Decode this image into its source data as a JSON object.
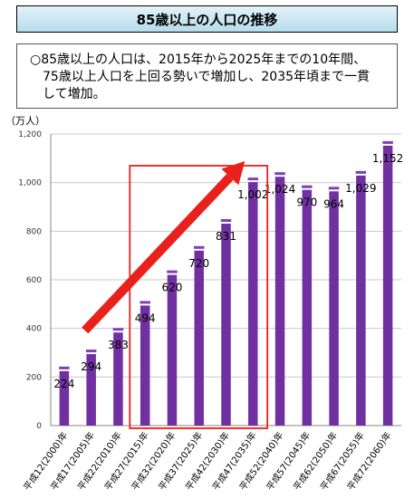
{
  "header": {
    "title": "85歳以上の人口の推移"
  },
  "description": {
    "bullet": "○",
    "line1": "85歳以上の人口は、2015年から2025年までの10年間、",
    "line2": "75歳以上人口を上回る勢いで増加し、2035年頃まで一貫",
    "line3": "して増加。"
  },
  "chart_data": {
    "type": "bar",
    "title": "",
    "ylabel": "（万人）",
    "xlabel": "",
    "ylim": [
      0,
      1200
    ],
    "yticks": [
      "0",
      "200",
      "400",
      "600",
      "800",
      "1,000",
      "1,200"
    ],
    "grid": true,
    "categories": [
      "平成12(2000)年",
      "平成17(2005)年",
      "平成22(2010)年",
      "平成27(2015)年",
      "平成32(2020)年",
      "平成37(2025)年",
      "平成42(2030)年",
      "平成47(2035)年",
      "平成52(2040)年",
      "平成57(2045)年",
      "平成62(2050)年",
      "平成67(2055)年",
      "平成72(2060)年"
    ],
    "values": [
      224,
      294,
      383,
      494,
      620,
      720,
      831,
      1002,
      1024,
      970,
      964,
      1029,
      1152
    ],
    "value_labels": [
      "224",
      "294",
      "383",
      "494",
      "620",
      "720",
      "831",
      "1,002",
      "1,024",
      "970",
      "964",
      "1,029",
      "1,152"
    ],
    "colors": {
      "bar": "#7030a0",
      "bar_top": "#7f3fb8",
      "highlight_box": "#e8211c",
      "arrow": "#e8211c"
    },
    "annotations": {
      "highlight_range": [
        "平成27(2015)年",
        "平成47(2035)年"
      ],
      "arrow": "red upward arrow across 2005–2035"
    }
  }
}
